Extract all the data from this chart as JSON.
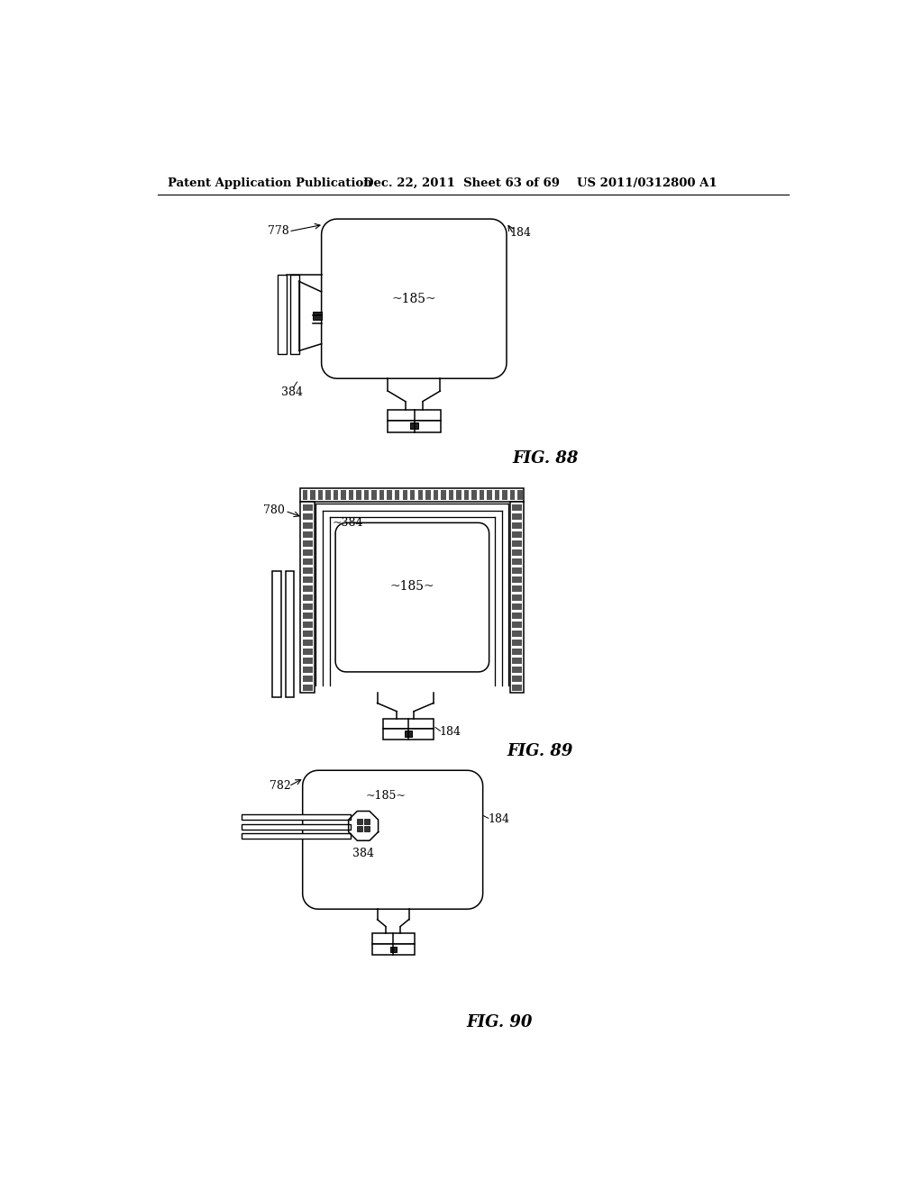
{
  "background_color": "#ffffff",
  "header_left": "Patent Application Publication",
  "header_mid": "Dec. 22, 2011  Sheet 63 of 69",
  "header_right": "US 2011/0312800 A1",
  "fig88_label": "FIG. 88",
  "fig89_label": "FIG. 89",
  "fig90_label": "FIG. 90"
}
